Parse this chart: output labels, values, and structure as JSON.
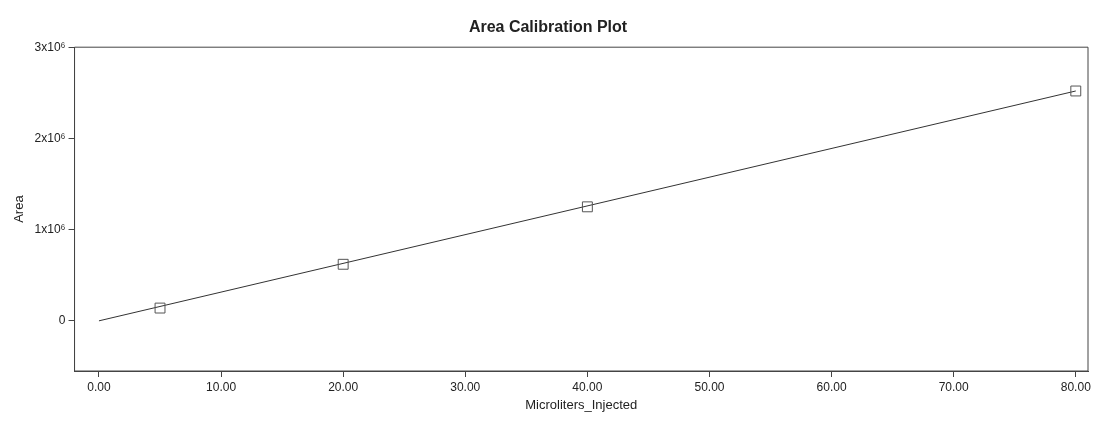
{
  "chart_data": {
    "type": "scatter",
    "title": "Area Calibration Plot",
    "xlabel": "Microliters_Injected",
    "ylabel": "Area",
    "xlim": [
      -2,
      81
    ],
    "ylim": [
      -550000,
      3000000
    ],
    "xticks": [
      {
        "value": 0,
        "label": "0.00"
      },
      {
        "value": 10,
        "label": "10.00"
      },
      {
        "value": 20,
        "label": "20.00"
      },
      {
        "value": 30,
        "label": "30.00"
      },
      {
        "value": 40,
        "label": "40.00"
      },
      {
        "value": 50,
        "label": "50.00"
      },
      {
        "value": 60,
        "label": "60.00"
      },
      {
        "value": 70,
        "label": "70.00"
      },
      {
        "value": 80,
        "label": "80.00"
      }
    ],
    "yticks": [
      {
        "value": 0,
        "label": "0"
      },
      {
        "value": 1000000,
        "label": "1x10⁶"
      },
      {
        "value": 2000000,
        "label": "2x10⁶"
      },
      {
        "value": 3000000,
        "label": "3x10⁶"
      }
    ],
    "grid": false,
    "legend": false,
    "series": [
      {
        "marker": "square",
        "color": "#555555",
        "x": [
          5,
          20,
          40,
          80
        ],
        "values": [
          140000,
          620000,
          1250000,
          2520000
        ]
      },
      {
        "type": "line",
        "color": "#333333",
        "x": [
          0,
          80
        ],
        "values": [
          0,
          2520000
        ]
      }
    ]
  }
}
